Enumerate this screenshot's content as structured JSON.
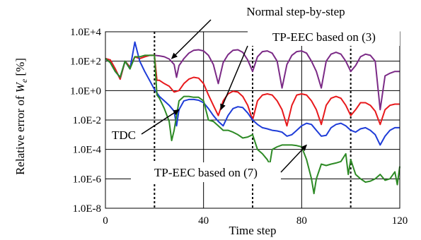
{
  "chart_data": {
    "type": "line",
    "title": "",
    "xlabel": "Time step",
    "ylabel_prefix": "Relative error of ",
    "ylabel_symbol": "W",
    "ylabel_subscript": "e",
    "ylabel_suffix": " [%]",
    "y_scale": "log",
    "xlim": [
      0,
      120
    ],
    "ylim": [
      1e-08,
      10000.0
    ],
    "x_ticks": [
      0,
      40,
      80,
      120
    ],
    "x_tick_labels": [
      "0",
      "40",
      "80",
      "120"
    ],
    "y_ticks": [
      10000.0,
      100.0,
      1,
      0.01,
      0.0001,
      1e-06,
      1e-08
    ],
    "y_tick_labels": [
      "1.0E+4",
      "1.0E+2",
      "1.0E+0",
      "1.0E-2",
      "1.0E-4",
      "1.0E-6",
      "1.0E-8"
    ],
    "grid_y": true,
    "dashed_vertical_lines_at": [
      20,
      60,
      100
    ],
    "solid_vertical_lines_at": [
      40,
      80
    ],
    "series": [
      {
        "name": "Normal step-by-step",
        "color": "#7b2a86",
        "x": [
          0,
          2,
          4,
          6,
          8,
          10,
          12,
          14,
          16,
          18,
          20,
          22,
          24,
          26,
          28,
          29,
          30,
          32,
          34,
          36,
          38,
          40,
          42,
          44,
          46,
          48,
          50,
          52,
          54,
          56,
          58,
          60,
          62,
          64,
          66,
          68,
          70,
          72,
          74,
          76,
          78,
          80,
          82,
          84,
          86,
          88,
          90,
          92,
          94,
          96,
          98,
          100,
          102,
          104,
          106,
          108,
          110,
          112,
          114,
          116,
          118,
          120
        ],
        "y": [
          150,
          120,
          30,
          6,
          100,
          40,
          200,
          150,
          200,
          250,
          250,
          230,
          200,
          140,
          60,
          8,
          50,
          150,
          350,
          550,
          600,
          500,
          250,
          60,
          3,
          80,
          280,
          550,
          600,
          400,
          120,
          20,
          200,
          450,
          500,
          350,
          100,
          1.5,
          60,
          250,
          450,
          500,
          350,
          100,
          20,
          1.5,
          100,
          300,
          400,
          300,
          100,
          20,
          50,
          200,
          300,
          250,
          100,
          0.05,
          10,
          15,
          20,
          20
        ]
      },
      {
        "name": "TP-EEC based on (3)",
        "color": "#e8191c",
        "x": [
          0,
          2,
          4,
          6,
          8,
          10,
          12,
          14,
          16,
          18,
          20,
          21,
          22,
          24,
          26,
          28,
          30,
          32,
          34,
          36,
          38,
          40,
          42,
          44,
          46,
          48,
          50,
          52,
          54,
          56,
          58,
          60,
          62,
          64,
          66,
          68,
          70,
          72,
          74,
          76,
          78,
          80,
          82,
          84,
          86,
          88,
          90,
          92,
          94,
          96,
          98,
          100,
          102,
          104,
          106,
          108,
          110,
          112,
          114,
          116,
          118,
          120
        ],
        "y": [
          150,
          120,
          30,
          6,
          100,
          40,
          200,
          150,
          200,
          250,
          250,
          5,
          5,
          3,
          2,
          0.8,
          1,
          3,
          6,
          8,
          7,
          3,
          0.5,
          0.1,
          0.02,
          0.2,
          0.6,
          0.9,
          0.8,
          0.4,
          0.1,
          0.01,
          0.2,
          0.5,
          0.6,
          0.5,
          0.2,
          0.05,
          0.004,
          0.1,
          0.5,
          0.6,
          0.5,
          0.2,
          0.05,
          0.005,
          0.1,
          0.3,
          0.4,
          0.3,
          0.1,
          0.02,
          0.05,
          0.15,
          0.15,
          0.1,
          0.04,
          0.005,
          0.05,
          0.1,
          0.12,
          0.12
        ]
      },
      {
        "name": "TDC",
        "color": "#1e3cd8",
        "x": [
          0,
          2,
          4,
          6,
          8,
          10,
          12,
          14,
          16,
          18,
          20,
          22,
          24,
          26,
          28,
          29,
          30,
          32,
          34,
          36,
          38,
          40,
          42,
          44,
          46,
          48,
          50,
          52,
          54,
          56,
          58,
          60,
          62,
          64,
          66,
          68,
          70,
          72,
          74,
          76,
          78,
          80,
          82,
          84,
          86,
          88,
          90,
          92,
          94,
          96,
          98,
          100,
          102,
          104,
          106,
          108,
          110,
          112,
          114,
          116,
          118,
          120
        ],
        "y": [
          150,
          80,
          20,
          8,
          100,
          30,
          2000,
          100,
          20,
          5,
          1.2,
          0.4,
          0.2,
          0.1,
          0.04,
          0.004,
          0.05,
          0.2,
          0.25,
          0.25,
          0.22,
          0.15,
          0.06,
          0.02,
          0.008,
          0.004,
          0.02,
          0.06,
          0.08,
          0.07,
          0.03,
          0.01,
          0.005,
          0.003,
          0.0025,
          0.002,
          0.0018,
          0.0015,
          0.0008,
          0.001,
          0.002,
          0.004,
          0.006,
          0.005,
          0.002,
          0.0008,
          0.0009,
          0.003,
          0.005,
          0.006,
          0.004,
          0.002,
          0.0015,
          0.0025,
          0.003,
          0.002,
          0.001,
          0.0002,
          0.0008,
          0.002,
          0.003,
          0.003
        ]
      },
      {
        "name": "TP-EEC based on (7)",
        "color": "#2d8a25",
        "x": [
          0,
          2,
          4,
          6,
          8,
          10,
          12,
          14,
          16,
          18,
          20,
          21,
          22,
          24,
          26,
          27,
          28,
          30,
          32,
          34,
          36,
          38,
          40,
          42,
          44,
          46,
          48,
          50,
          52,
          54,
          56,
          58,
          60,
          62,
          64,
          66,
          67,
          68,
          70,
          72,
          74,
          76,
          78,
          80,
          82,
          84,
          85,
          86,
          88,
          90,
          92,
          94,
          96,
          98,
          99,
          100,
          102,
          104,
          106,
          108,
          110,
          112,
          114,
          116,
          118,
          119,
          120
        ],
        "y": [
          150,
          80,
          20,
          8,
          100,
          30,
          200,
          200,
          250,
          250,
          250,
          0.5,
          0.3,
          0.06,
          0.008,
          0.0004,
          0.002,
          0.2,
          0.4,
          0.4,
          0.35,
          0.35,
          0.2,
          0.01,
          0.008,
          0.004,
          0.002,
          0.002,
          0.0015,
          0.001,
          0.0006,
          0.0007,
          0.001,
          0.0001,
          5e-05,
          2e-05,
          1e-05,
          0.0001,
          0.00015,
          0.0002,
          0.0002,
          0.0002,
          0.00018,
          0.00015,
          2e-05,
          1e-06,
          1e-07,
          1e-06,
          1e-05,
          8e-06,
          1e-05,
          1.2e-05,
          1.5e-05,
          5e-05,
          2e-06,
          2e-05,
          2e-06,
          1e-06,
          6e-07,
          7e-07,
          1e-06,
          2e-06,
          8e-07,
          1e-06,
          3e-06,
          4e-07,
          7e-06
        ]
      }
    ],
    "annotations": [
      {
        "text": "Normal step-by-step",
        "series": 0,
        "arrow_to": [
          27,
          150
        ]
      },
      {
        "text": "TP-EEC based on (3)",
        "series": 1,
        "arrow_to": [
          47,
          0.05
        ]
      },
      {
        "text": "TDC",
        "series": 2,
        "arrow_to": [
          30,
          0.05
        ]
      },
      {
        "text": "TP-EEC based on (7)",
        "series": 3,
        "arrow_to": [
          82,
          0.0002
        ]
      }
    ]
  }
}
